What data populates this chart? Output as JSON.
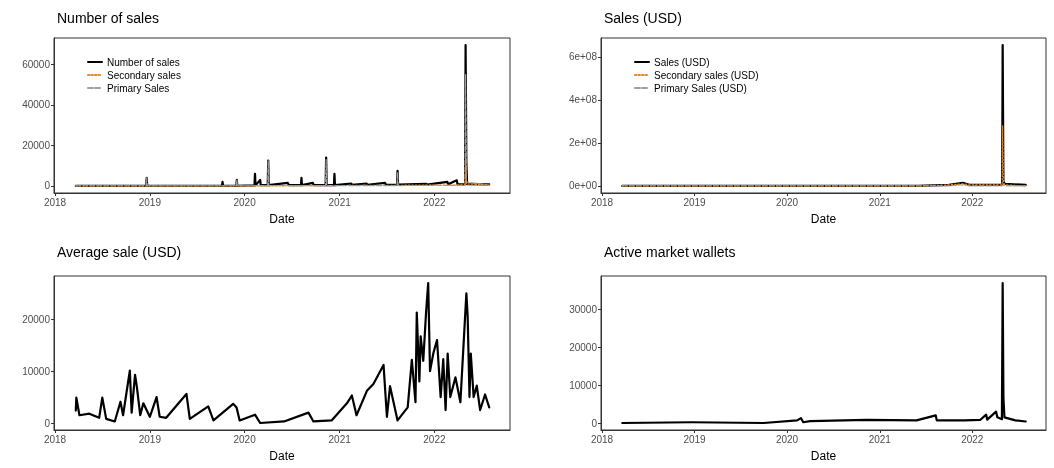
{
  "chart_data": [
    {
      "type": "line",
      "title": "Number of sales",
      "xlabel": "Date",
      "xlim": [
        "2017-12-28",
        "2022-10-19"
      ],
      "xticks": [
        {
          "value": "2018-01-01",
          "label": "2018"
        },
        {
          "value": "2019-01-01",
          "label": "2019"
        },
        {
          "value": "2020-01-01",
          "label": "2020"
        },
        {
          "value": "2021-01-01",
          "label": "2021"
        },
        {
          "value": "2022-01-01",
          "label": "2022"
        }
      ],
      "ylim": [
        -3475,
        72975
      ],
      "yticks": [
        0,
        20000,
        40000,
        60000
      ],
      "grid": false,
      "legend": "top left",
      "series": [
        {
          "name": "Number of sales",
          "color": "#000000",
          "line_style": "solid",
          "x": [
            "2018-03-22",
            "2018-12-18",
            "2018-12-20",
            "2018-12-22",
            "2019-10-06",
            "2019-10-08",
            "2019-10-10",
            "2019-11-30",
            "2019-12-02",
            "2019-12-04",
            "2020-02-08",
            "2020-02-10",
            "2020-02-12",
            "2020-03-01",
            "2020-03-03",
            "2020-03-30",
            "2020-04-01",
            "2020-04-03",
            "2020-06-15",
            "2020-06-20",
            "2020-08-05",
            "2020-08-07",
            "2020-08-09",
            "2020-09-20",
            "2020-09-23",
            "2020-11-08",
            "2020-11-10",
            "2020-11-12",
            "2020-12-10",
            "2020-12-12",
            "2020-12-14",
            "2021-02-15",
            "2021-02-18",
            "2021-04-15",
            "2021-04-18",
            "2021-06-25",
            "2021-06-28",
            "2021-08-10",
            "2021-08-12",
            "2021-08-14",
            "2021-12-01",
            "2021-12-04",
            "2022-02-20",
            "2022-02-23",
            "2022-03-28",
            "2022-03-31",
            "2022-04-29",
            "2022-05-01",
            "2022-05-04",
            "2022-05-07",
            "2022-07-31"
          ],
          "values": [
            0,
            0,
            4000,
            0,
            0,
            2000,
            0,
            0,
            3000,
            0,
            300,
            6000,
            300,
            3000,
            400,
            400,
            12500,
            400,
            1500,
            400,
            400,
            4000,
            400,
            1500,
            400,
            400,
            14000,
            400,
            400,
            6000,
            400,
            1200,
            600,
            1200,
            600,
            1500,
            600,
            600,
            7500,
            700,
            1000,
            700,
            2000,
            800,
            2800,
            800,
            800,
            69500,
            11000,
            900,
            800
          ]
        },
        {
          "name": "Secondary sales",
          "color": "#e08a2c",
          "line_style": "dotted",
          "x": [
            "2018-03-22",
            "2020-01-01",
            "2021-06-01",
            "2022-04-29",
            "2022-05-01",
            "2022-05-04",
            "2022-07-31"
          ],
          "values": [
            0,
            0,
            300,
            500,
            14000,
            1000,
            500
          ]
        },
        {
          "name": "Primary Sales",
          "color": "#a0a0a0",
          "line_style": "dashed",
          "x": [
            "2018-03-22",
            "2018-12-18",
            "2018-12-20",
            "2018-12-22",
            "2019-11-30",
            "2019-12-02",
            "2019-12-04",
            "2020-03-30",
            "2020-04-01",
            "2020-04-03",
            "2020-11-08",
            "2020-11-10",
            "2020-11-12",
            "2021-08-10",
            "2021-08-12",
            "2021-08-14",
            "2022-04-29",
            "2022-05-01",
            "2022-05-04",
            "2022-07-31"
          ],
          "values": [
            0,
            0,
            4000,
            0,
            0,
            3000,
            0,
            200,
            12500,
            200,
            200,
            13000,
            200,
            200,
            6500,
            200,
            300,
            55000,
            2000,
            300
          ]
        }
      ]
    },
    {
      "type": "line",
      "title": "Sales (USD)",
      "xlabel": "Date",
      "xlim": [
        "2017-12-28",
        "2022-10-19"
      ],
      "xticks": [
        {
          "value": "2018-01-01",
          "label": "2018"
        },
        {
          "value": "2019-01-01",
          "label": "2019"
        },
        {
          "value": "2020-01-01",
          "label": "2020"
        },
        {
          "value": "2021-01-01",
          "label": "2021"
        },
        {
          "value": "2022-01-01",
          "label": "2022"
        }
      ],
      "ylim": [
        -32750000,
        687750000
      ],
      "yticks": [
        {
          "value": 0,
          "label": "0e+00"
        },
        {
          "value": 200000000,
          "label": "2e+08"
        },
        {
          "value": 400000000,
          "label": "4e+08"
        },
        {
          "value": 600000000,
          "label": "6e+08"
        }
      ],
      "grid": false,
      "legend": "top left",
      "series": [
        {
          "name": "Sales (USD)",
          "color": "#000000",
          "line_style": "solid",
          "x": [
            "2018-03-22",
            "2021-06-01",
            "2021-10-01",
            "2021-11-25",
            "2021-12-20",
            "2022-02-01",
            "2022-04-29",
            "2022-05-01",
            "2022-05-04",
            "2022-05-10",
            "2022-07-31"
          ],
          "values": [
            0,
            0,
            5000000,
            15000000,
            5000000,
            5000000,
            5000000,
            655000000,
            20000000,
            10000000,
            5000000
          ]
        },
        {
          "name": "Secondary sales (USD)",
          "color": "#e08a2c",
          "line_style": "dotted",
          "x": [
            "2018-03-22",
            "2021-06-01",
            "2021-10-01",
            "2021-11-25",
            "2021-12-20",
            "2022-04-29",
            "2022-05-01",
            "2022-05-04",
            "2022-05-10",
            "2022-07-31"
          ],
          "values": [
            0,
            0,
            5000000,
            10000000,
            5000000,
            5000000,
            280000000,
            15000000,
            5000000,
            0
          ]
        },
        {
          "name": "Primary Sales (USD)",
          "color": "#a0a0a0",
          "line_style": "dashed",
          "x": [
            "2018-03-22",
            "2021-06-01",
            "2021-10-01",
            "2021-11-25",
            "2021-12-20",
            "2022-02-01",
            "2022-04-29",
            "2022-05-01",
            "2022-05-04",
            "2022-05-10",
            "2022-07-31"
          ],
          "values": [
            0,
            0,
            0,
            5000000,
            0,
            0,
            0,
            5000000,
            5000000,
            0,
            0
          ]
        }
      ]
    },
    {
      "type": "line",
      "title": "Average sale (USD)",
      "xlabel": "Date",
      "xlim": [
        "2017-12-28",
        "2022-10-19"
      ],
      "xticks": [
        {
          "value": "2018-01-01",
          "label": "2018"
        },
        {
          "value": "2019-01-01",
          "label": "2019"
        },
        {
          "value": "2020-01-01",
          "label": "2020"
        },
        {
          "value": "2021-01-01",
          "label": "2021"
        },
        {
          "value": "2022-01-01",
          "label": "2022"
        }
      ],
      "ylim": [
        -1350,
        28350
      ],
      "yticks": [
        0,
        10000,
        20000
      ],
      "grid": false,
      "series": [
        {
          "color": "#000000",
          "line_style": "solid",
          "x": [
            "2018-03-22",
            "2018-03-24",
            "2018-04-05",
            "2018-05-13",
            "2018-06-20",
            "2018-07-02",
            "2018-07-17",
            "2018-08-19",
            "2018-09-10",
            "2018-09-20",
            "2018-10-16",
            "2018-10-23",
            "2018-11-05",
            "2018-11-12",
            "2018-11-25",
            "2018-12-07",
            "2019-01-01",
            "2019-01-27",
            "2019-02-08",
            "2019-03-05",
            "2019-05-22",
            "2019-06-04",
            "2019-08-14",
            "2019-09-03",
            "2019-11-18",
            "2019-12-01",
            "2019-12-13",
            "2020-02-10",
            "2020-03-01",
            "2020-06-01",
            "2020-09-03",
            "2020-09-22",
            "2020-12-01",
            "2021-01-29",
            "2021-02-17",
            "2021-03-07",
            "2021-04-16",
            "2021-05-11",
            "2021-06-19",
            "2021-07-02",
            "2021-07-14",
            "2021-08-12",
            "2021-09-20",
            "2021-10-06",
            "2021-10-20",
            "2021-10-25",
            "2021-11-04",
            "2021-11-09",
            "2021-11-19",
            "2021-11-30",
            "2021-12-08",
            "2021-12-15",
            "2021-12-28",
            "2022-01-11",
            "2022-01-25",
            "2022-02-04",
            "2022-02-13",
            "2022-02-21",
            "2022-03-03",
            "2022-03-23",
            "2022-04-11",
            "2022-05-04",
            "2022-05-09",
            "2022-05-16",
            "2022-05-21",
            "2022-06-01",
            "2022-06-13",
            "2022-06-26",
            "2022-07-15",
            "2022-07-31"
          ],
          "values": [
            2400,
            4900,
            1500,
            1800,
            1000,
            4900,
            800,
            300,
            4100,
            1500,
            10100,
            2000,
            9300,
            7000,
            1500,
            3800,
            1200,
            5000,
            1200,
            1000,
            5600,
            800,
            3200,
            500,
            3700,
            3000,
            500,
            1600,
            0,
            300,
            2000,
            300,
            500,
            3800,
            5300,
            1500,
            6200,
            7500,
            11200,
            1200,
            7100,
            500,
            3000,
            12200,
            4000,
            21300,
            8000,
            16700,
            12000,
            21500,
            27000,
            10000,
            13500,
            16000,
            5000,
            12300,
            2500,
            13400,
            5000,
            8800,
            4000,
            25000,
            20500,
            5000,
            13400,
            5000,
            7200,
            2500,
            5500,
            3000
          ]
        }
      ]
    },
    {
      "type": "line",
      "title": "Active market wallets",
      "xlabel": "Date",
      "xlim": [
        "2017-12-28",
        "2022-10-19"
      ],
      "xticks": [
        {
          "value": "2018-01-01",
          "label": "2018"
        },
        {
          "value": "2019-01-01",
          "label": "2019"
        },
        {
          "value": "2020-01-01",
          "label": "2020"
        },
        {
          "value": "2021-01-01",
          "label": "2021"
        },
        {
          "value": "2022-01-01",
          "label": "2022"
        }
      ],
      "ylim": [
        -1850,
        38850
      ],
      "yticks": [
        0,
        10000,
        20000,
        30000
      ],
      "grid": false,
      "series": [
        {
          "color": "#000000",
          "line_style": "solid",
          "x": [
            "2018-03-22",
            "2018-12-20",
            "2019-10-01",
            "2020-02-10",
            "2020-02-25",
            "2020-03-05",
            "2020-04-01",
            "2020-11-10",
            "2021-05-26",
            "2021-08-10",
            "2021-08-14",
            "2021-12-01",
            "2022-02-01",
            "2022-02-25",
            "2022-03-01",
            "2022-04-05",
            "2022-04-10",
            "2022-04-28",
            "2022-05-01",
            "2022-05-04",
            "2022-05-08",
            "2022-06-20",
            "2022-07-31"
          ],
          "values": [
            0,
            200,
            0,
            700,
            1300,
            200,
            500,
            800,
            700,
            2000,
            700,
            700,
            800,
            2200,
            900,
            3000,
            1500,
            1000,
            37000,
            6500,
            1500,
            700,
            400
          ]
        }
      ]
    }
  ]
}
